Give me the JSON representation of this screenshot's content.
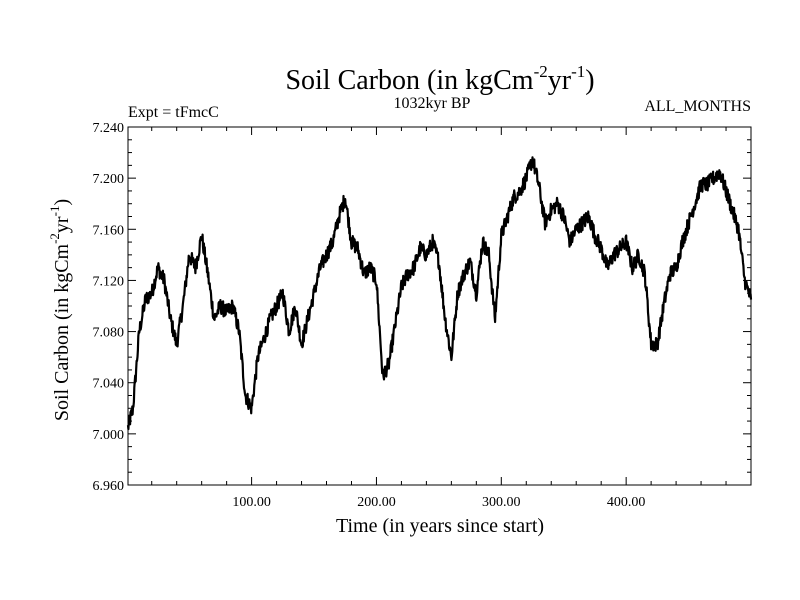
{
  "chart_data": {
    "type": "line",
    "title_main": "Soil Carbon (in kgCm",
    "title_sup1": "-2",
    "title_mid": "yr",
    "title_sup2": "-1",
    "title_end": ")",
    "subtitle_left": "Expt = tFmcC",
    "subtitle_center": "1032kyr BP",
    "subtitle_right": "ALL_MONTHS",
    "xlabel": "Time (in years since start)",
    "ylabel_main": "Soil Carbon (in kgCm",
    "ylabel_sup1": "-2",
    "ylabel_mid": "yr",
    "ylabel_sup2": "-1",
    "ylabel_end": ")",
    "xlim": [
      1,
      500
    ],
    "ylim": [
      6.96,
      7.24
    ],
    "x_ticks": [
      100,
      200,
      300,
      400
    ],
    "x_tick_labels": [
      "100.00",
      "200.00",
      "300.00",
      "400.00"
    ],
    "y_ticks": [
      6.96,
      7.0,
      7.04,
      7.08,
      7.12,
      7.16,
      7.2,
      7.24
    ],
    "y_tick_labels": [
      "6.960",
      "7.000",
      "7.040",
      "7.080",
      "7.120",
      "7.160",
      "7.200",
      "7.240"
    ],
    "series": [
      {
        "name": "Soil Carbon",
        "color": "#000000",
        "x": [
          1,
          5,
          10,
          15,
          20,
          25,
          30,
          35,
          40,
          45,
          50,
          55,
          60,
          65,
          70,
          75,
          80,
          85,
          90,
          95,
          100,
          105,
          110,
          115,
          120,
          125,
          130,
          135,
          140,
          145,
          150,
          155,
          160,
          165,
          170,
          175,
          180,
          185,
          190,
          195,
          200,
          205,
          210,
          215,
          220,
          225,
          230,
          235,
          240,
          245,
          250,
          255,
          260,
          265,
          270,
          275,
          280,
          285,
          290,
          295,
          300,
          305,
          310,
          315,
          320,
          325,
          330,
          335,
          340,
          345,
          350,
          355,
          360,
          365,
          370,
          375,
          380,
          385,
          390,
          395,
          400,
          405,
          410,
          415,
          420,
          425,
          430,
          435,
          440,
          445,
          450,
          455,
          460,
          465,
          470,
          475,
          480,
          485,
          490,
          495,
          500
        ],
        "y": [
          7.005,
          7.02,
          7.08,
          7.105,
          7.11,
          7.13,
          7.12,
          7.09,
          7.07,
          7.1,
          7.14,
          7.13,
          7.155,
          7.125,
          7.09,
          7.1,
          7.095,
          7.1,
          7.08,
          7.03,
          7.02,
          7.06,
          7.075,
          7.09,
          7.1,
          7.11,
          7.08,
          7.1,
          7.07,
          7.09,
          7.11,
          7.13,
          7.14,
          7.15,
          7.17,
          7.185,
          7.15,
          7.145,
          7.125,
          7.13,
          7.12,
          7.045,
          7.055,
          7.085,
          7.115,
          7.125,
          7.13,
          7.145,
          7.14,
          7.15,
          7.135,
          7.09,
          7.06,
          7.11,
          7.125,
          7.135,
          7.11,
          7.15,
          7.14,
          7.09,
          7.155,
          7.17,
          7.185,
          7.19,
          7.2,
          7.215,
          7.195,
          7.165,
          7.175,
          7.18,
          7.17,
          7.15,
          7.16,
          7.165,
          7.17,
          7.155,
          7.145,
          7.13,
          7.14,
          7.145,
          7.15,
          7.13,
          7.14,
          7.125,
          7.07,
          7.07,
          7.1,
          7.125,
          7.13,
          7.15,
          7.165,
          7.18,
          7.195,
          7.195,
          7.2,
          7.205,
          7.19,
          7.175,
          7.16,
          7.12,
          7.105
        ]
      }
    ]
  }
}
